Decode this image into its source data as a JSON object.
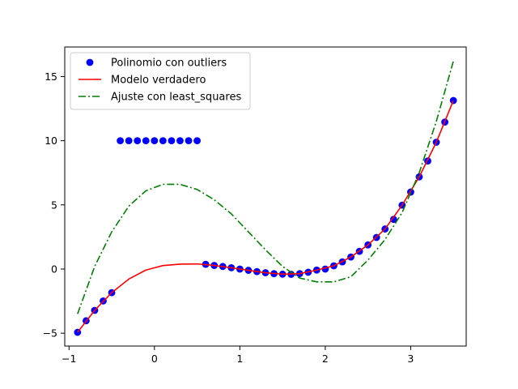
{
  "chart_data": {
    "type": "scatter",
    "title": "",
    "xlabel": "",
    "ylabel": "",
    "xlim": [
      -1.05,
      3.65
    ],
    "ylim": [
      -6.0,
      17.3
    ],
    "xticks": [
      -1,
      0,
      1,
      2,
      3
    ],
    "yticks": [
      -5,
      0,
      5,
      10,
      15
    ],
    "grid": false,
    "legend_position": "top-left",
    "series": [
      {
        "name": "Polinomio con outliers",
        "kind": "scatter",
        "color": "#0000ff",
        "x": [
          -0.9,
          -0.8,
          -0.7,
          -0.6,
          -0.5,
          -0.4,
          -0.3,
          -0.2,
          -0.1,
          0.0,
          0.1,
          0.2,
          0.3,
          0.4,
          0.5,
          0.6,
          0.7,
          0.8,
          0.9,
          1.0,
          1.1,
          1.2,
          1.3,
          1.4,
          1.5,
          1.6,
          1.7,
          1.8,
          1.9,
          2.0,
          2.1,
          2.2,
          2.3,
          2.4,
          2.5,
          2.6,
          2.7,
          2.8,
          2.9,
          3.0,
          3.1,
          3.2,
          3.3,
          3.4,
          3.5
        ],
        "y": [
          -4.93,
          -4.03,
          -3.22,
          -2.49,
          -1.84,
          10,
          10,
          10,
          10,
          10,
          10,
          10,
          10,
          10,
          10,
          0.37,
          0.28,
          0.2,
          0.1,
          0.0,
          -0.1,
          -0.2,
          -0.29,
          -0.36,
          -0.4,
          -0.41,
          -0.36,
          -0.25,
          -0.08,
          0.0,
          0.25,
          0.56,
          0.94,
          1.38,
          1.88,
          2.46,
          3.12,
          3.87,
          4.98,
          6.0,
          7.18,
          8.42,
          9.88,
          11.45,
          13.13
        ]
      },
      {
        "name": "Modelo verdadero",
        "kind": "line",
        "color": "#ff0000",
        "style": "solid",
        "x": [
          -0.9,
          -0.7,
          -0.5,
          -0.3,
          -0.1,
          0.1,
          0.3,
          0.5,
          0.7,
          0.9,
          1.1,
          1.3,
          1.5,
          1.7,
          1.9,
          2.1,
          2.3,
          2.5,
          2.7,
          2.9,
          3.1,
          3.3,
          3.5
        ],
        "y": [
          -4.93,
          -3.22,
          -1.84,
          -0.78,
          -0.08,
          0.27,
          0.38,
          0.4,
          0.28,
          0.1,
          -0.1,
          -0.29,
          -0.4,
          -0.36,
          -0.08,
          0.25,
          0.94,
          1.88,
          3.12,
          4.98,
          7.18,
          9.88,
          13.13
        ]
      },
      {
        "name": "Ajuste con least_squares",
        "kind": "line",
        "color": "#008000",
        "style": "dashdot",
        "x": [
          -0.9,
          -0.7,
          -0.5,
          -0.3,
          -0.1,
          0.1,
          0.3,
          0.5,
          0.7,
          0.9,
          1.1,
          1.3,
          1.5,
          1.7,
          1.9,
          2.1,
          2.3,
          2.5,
          2.7,
          2.9,
          3.1,
          3.3,
          3.5
        ],
        "y": [
          -3.5,
          0.2,
          2.9,
          4.9,
          6.1,
          6.6,
          6.6,
          6.2,
          5.4,
          4.3,
          2.9,
          1.5,
          0.2,
          -0.7,
          -1.0,
          -1.0,
          -0.6,
          0.7,
          2.3,
          4.4,
          7.5,
          11.5,
          16.2
        ]
      }
    ]
  }
}
